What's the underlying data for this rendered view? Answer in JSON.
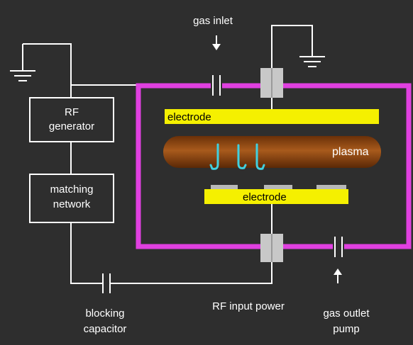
{
  "labels": {
    "gas_inlet": "gas inlet",
    "rf_generator_line1": "RF",
    "rf_generator_line2": "generator",
    "matching_network_line1": "matching",
    "matching_network_line2": "network",
    "top_electrode": "electrode",
    "plasma": "plasma",
    "bottom_electrode": "electrode",
    "blocking_capacitor_line1": "blocking",
    "blocking_capacitor_line2": "capacitor",
    "rf_input_power": "RF input power",
    "gas_outlet_line1": "gas outlet",
    "gas_outlet_line2": "pump"
  },
  "colors": {
    "background": "#2e2e2e",
    "wire": "#ffffff",
    "chamber": "#e040e0",
    "electrode": "#f5f000",
    "plasma": "#8a4410",
    "ion_arrows": "#40d0e0",
    "insulator": "#c8c8c8",
    "wafer": "#b8b8b8"
  },
  "icons": {
    "ground_left": "ground-symbol-icon",
    "ground_right": "ground-symbol-icon",
    "gas_inlet_arrow": "arrow-down-icon",
    "gas_outlet_arrow": "arrow-up-icon",
    "ion_flow": "hook-arrow-icon"
  }
}
